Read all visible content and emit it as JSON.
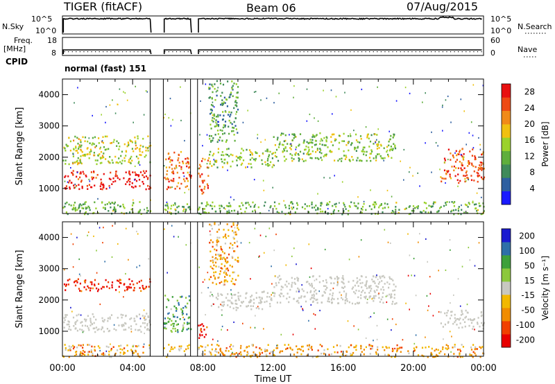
{
  "header": {
    "radar": "TIGER (fitACF)",
    "beam": "Beam 06",
    "date": "07/Aug/2015"
  },
  "strip_labels": {
    "nsky": "N.Sky",
    "nsearch": "N.Search",
    "freq": "Freq.",
    "freq_unit": "[MHz]",
    "nave": "Nave",
    "cpid": "CPID",
    "noise_ticks_left": [
      "10^5",
      "10^0"
    ],
    "noise_ticks_right": [
      "10^5",
      "10^0"
    ],
    "freq_ticks": [
      "18",
      "8"
    ],
    "nave_ticks": [
      "60",
      "0"
    ]
  },
  "cpid_text": "normal (fast) 151",
  "colors": {
    "power_scale": [
      "#1a1aff",
      "#2e5fa0",
      "#3f8a5a",
      "#5fae3c",
      "#9bd22c",
      "#f0c010",
      "#f08a18",
      "#ee4a14",
      "#e81010"
    ],
    "velocity_scale": [
      "#e80000",
      "#f04000",
      "#f08c00",
      "#f2b800",
      "#c8c8c0",
      "#8cc83c",
      "#3ea03a",
      "#2e6fa8",
      "#1a1ad0"
    ],
    "ground_scatter": "#c8c8c0"
  },
  "chart_data": [
    {
      "type": "heatmap",
      "panel": "power",
      "xlabel": "",
      "ylabel": "Slant Range [km]",
      "xlim": [
        0,
        24
      ],
      "ylim": [
        200,
        4500
      ],
      "y_ticks": [
        "1000",
        "2000",
        "3000",
        "4000"
      ],
      "colorbar": {
        "label": "Power [dB]",
        "ticks": [
          "4",
          "8",
          "12",
          "16",
          "20",
          "24",
          "28"
        ],
        "range": [
          0,
          30
        ]
      },
      "gaps_ut": [
        [
          5.0,
          5.75
        ],
        [
          7.3,
          7.7
        ]
      ],
      "echo_regions": [
        {
          "t": [
            0.0,
            5.0
          ],
          "r": [
            1000,
            1600
          ],
          "value": 28
        },
        {
          "t": [
            0.0,
            5.0
          ],
          "r": [
            1800,
            2700
          ],
          "value": 16
        },
        {
          "t": [
            5.75,
            7.3
          ],
          "r": [
            1000,
            2200
          ],
          "value": 24
        },
        {
          "t": [
            7.7,
            8.3
          ],
          "r": [
            800,
            2000
          ],
          "value": 24
        },
        {
          "t": [
            8.3,
            10.0
          ],
          "r": [
            2500,
            4500
          ],
          "value": 10
        },
        {
          "t": [
            8.3,
            12.0
          ],
          "r": [
            1700,
            2300
          ],
          "value": 14
        },
        {
          "t": [
            12.0,
            19.0
          ],
          "r": [
            1900,
            2800
          ],
          "value": 14
        },
        {
          "t": [
            21.5,
            24.0
          ],
          "r": [
            1200,
            2300
          ],
          "value": 24
        },
        {
          "t": [
            0.0,
            24.0
          ],
          "r": [
            200,
            600
          ],
          "value": 12
        }
      ]
    },
    {
      "type": "heatmap",
      "panel": "velocity",
      "xlabel": "Time UT",
      "ylabel": "Slant Range [km]",
      "x_ticks": [
        "00:00",
        "04:00",
        "08:00",
        "12:00",
        "16:00",
        "20:00",
        "00:00"
      ],
      "xlim": [
        0,
        24
      ],
      "ylim": [
        200,
        4500
      ],
      "y_ticks": [
        "1000",
        "2000",
        "3000",
        "4000"
      ],
      "colorbar": {
        "label": "Velocity [m s⁻¹]",
        "ticks": [
          "200",
          "100",
          "50",
          "15",
          "-15",
          "-50",
          "-100",
          "-200"
        ],
        "range": [
          -250,
          250
        ]
      },
      "gaps_ut": [
        [
          5.0,
          5.75
        ],
        [
          7.3,
          7.7
        ]
      ],
      "echo_regions": [
        {
          "t": [
            0.0,
            5.0
          ],
          "r": [
            1000,
            1600
          ],
          "value": 0,
          "ground_scatter": true
        },
        {
          "t": [
            0.0,
            5.0
          ],
          "r": [
            2300,
            2700
          ],
          "value": -200
        },
        {
          "t": [
            5.75,
            7.3
          ],
          "r": [
            1000,
            2200
          ],
          "value": 100
        },
        {
          "t": [
            7.7,
            8.3
          ],
          "r": [
            800,
            1400
          ],
          "value": -200
        },
        {
          "t": [
            8.3,
            10.0
          ],
          "r": [
            2500,
            4500
          ],
          "value": -80
        },
        {
          "t": [
            8.3,
            12.0
          ],
          "r": [
            1700,
            2300
          ],
          "value": 0,
          "ground_scatter": true
        },
        {
          "t": [
            12.0,
            19.0
          ],
          "r": [
            1900,
            2800
          ],
          "value": 0,
          "ground_scatter": true
        },
        {
          "t": [
            21.5,
            24.0
          ],
          "r": [
            1100,
            1700
          ],
          "value": 0,
          "ground_scatter": true
        },
        {
          "t": [
            0.0,
            24.0
          ],
          "r": [
            200,
            600
          ],
          "value": -80
        }
      ]
    }
  ]
}
